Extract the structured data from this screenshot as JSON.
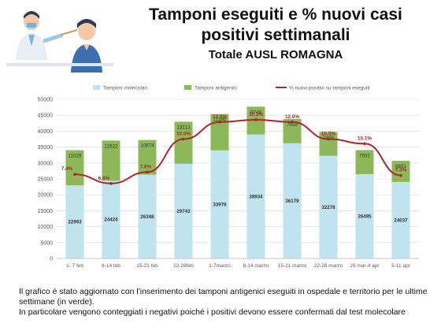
{
  "header": {
    "title_line1": "Tamponi eseguiti e % nuovi casi",
    "title_line2": "positivi settimanali",
    "subtitle": "Totale AUSL ROMAGNA"
  },
  "footer": {
    "line1": "Il grafico è stato aggiornato con l'inserimento dei tamponi antigenici eseguiti in ospedale e territorio per le ultime settimane (in verde).",
    "line2": "In particolare vengono conteggiati i negativi poiché i positivi devono essere confermati dal test molecolare"
  },
  "colors": {
    "molecolari": "#bfe3ef",
    "antigenici": "#8db85a",
    "positivi_line": "#b3232b",
    "axis_text": "#595959",
    "grid": "#d9d9d9"
  },
  "chart_data": {
    "type": "bar",
    "stacked": true,
    "title": "",
    "xlabel": "",
    "ylabel": "",
    "ylim": [
      0,
      50000
    ],
    "yticks": [
      0,
      5000,
      10000,
      15000,
      20000,
      25000,
      30000,
      35000,
      40000,
      45000,
      50000
    ],
    "legend_position": "top",
    "grid": true,
    "categories": [
      "1- 7 feb",
      "8-14 feb",
      "15-21 feb",
      "22-28feb",
      "1-7marzo",
      "8-14 marzo",
      "15-21 marzo",
      "22-28 marzo",
      "29 mar-4 apr",
      "5-11 apr"
    ],
    "series": [
      {
        "name": "Tamponi molecolari",
        "kind": "bar",
        "values": [
          22993,
          24424,
          26348,
          29743,
          33976,
          38934,
          36179,
          32278,
          26495,
          24037
        ],
        "labels": [
          "22993",
          "24424",
          "26348",
          "29743",
          "33976",
          "38934",
          "36179",
          "32278",
          "26495",
          "24037"
        ]
      },
      {
        "name": "Tamponi antigenici",
        "kind": "bar",
        "values": [
          11029,
          12622,
          10874,
          13213,
          11395,
          8749,
          7658,
          7468,
          7552,
          6651
        ],
        "labels": [
          "11029",
          "12622",
          "10874",
          "13213",
          "11395",
          "8749",
          "7658",
          "7468",
          "7552",
          "6651"
        ]
      },
      {
        "name": "% nuovi positivi su tamponi eseguiti",
        "kind": "line",
        "values": [
          7.4,
          6.6,
          7.6,
          10.5,
          12.0,
          12.2,
          12.0,
          10.5,
          10.1,
          7.3
        ],
        "labels": [
          "7.4%",
          "6.6%",
          "7.6%",
          "10.5%",
          "12.0%",
          "12.2%",
          "12.0%",
          "10.5%",
          "10.1%",
          "7.3%"
        ]
      }
    ]
  }
}
